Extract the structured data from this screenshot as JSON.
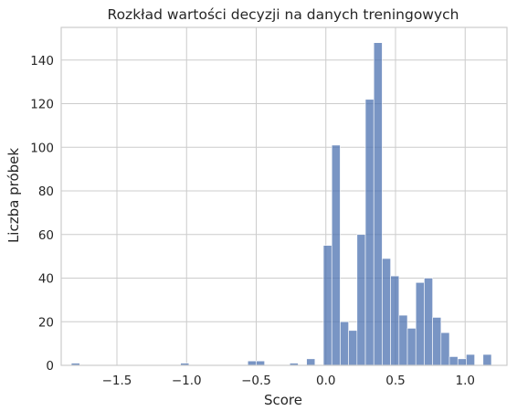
{
  "chart_data": {
    "type": "bar",
    "title": "Rozkład wartości decyzji na danych treningowych",
    "xlabel": "Score",
    "ylabel": "Liczba próbek",
    "xlim": [
      -1.9,
      1.3
    ],
    "ylim": [
      0,
      155
    ],
    "xticks": [
      -1.5,
      -1.0,
      -0.5,
      0.0,
      0.5,
      1.0
    ],
    "xtick_labels": [
      "−1.5",
      "−1.0",
      "−0.5",
      "0.0",
      "0.5",
      "1.0"
    ],
    "yticks": [
      0,
      20,
      40,
      60,
      80,
      100,
      120,
      140
    ],
    "ytick_labels": [
      "0",
      "20",
      "40",
      "60",
      "80",
      "100",
      "120",
      "140"
    ],
    "grid": true,
    "color": "#4c72b0",
    "bin_width": 0.0603,
    "bins": [
      {
        "x": -1.8273,
        "count": 1
      },
      {
        "x": -1.0432,
        "count": 1
      },
      {
        "x": -0.5606,
        "count": 2
      },
      {
        "x": -0.5003,
        "count": 2
      },
      {
        "x": -0.2591,
        "count": 1
      },
      {
        "x": -0.1385,
        "count": 3
      },
      {
        "x": -0.0178,
        "count": 55
      },
      {
        "x": 0.0425,
        "count": 101
      },
      {
        "x": 0.1028,
        "count": 20
      },
      {
        "x": 0.1631,
        "count": 16
      },
      {
        "x": 0.2235,
        "count": 60
      },
      {
        "x": 0.2838,
        "count": 122
      },
      {
        "x": 0.3441,
        "count": 148
      },
      {
        "x": 0.4044,
        "count": 49
      },
      {
        "x": 0.4648,
        "count": 41
      },
      {
        "x": 0.5251,
        "count": 23
      },
      {
        "x": 0.5854,
        "count": 17
      },
      {
        "x": 0.6457,
        "count": 38
      },
      {
        "x": 0.7061,
        "count": 40
      },
      {
        "x": 0.7664,
        "count": 22
      },
      {
        "x": 0.8267,
        "count": 15
      },
      {
        "x": 0.887,
        "count": 4
      },
      {
        "x": 0.9474,
        "count": 3
      },
      {
        "x": 1.0077,
        "count": 5
      },
      {
        "x": 1.1283,
        "count": 5
      }
    ]
  }
}
